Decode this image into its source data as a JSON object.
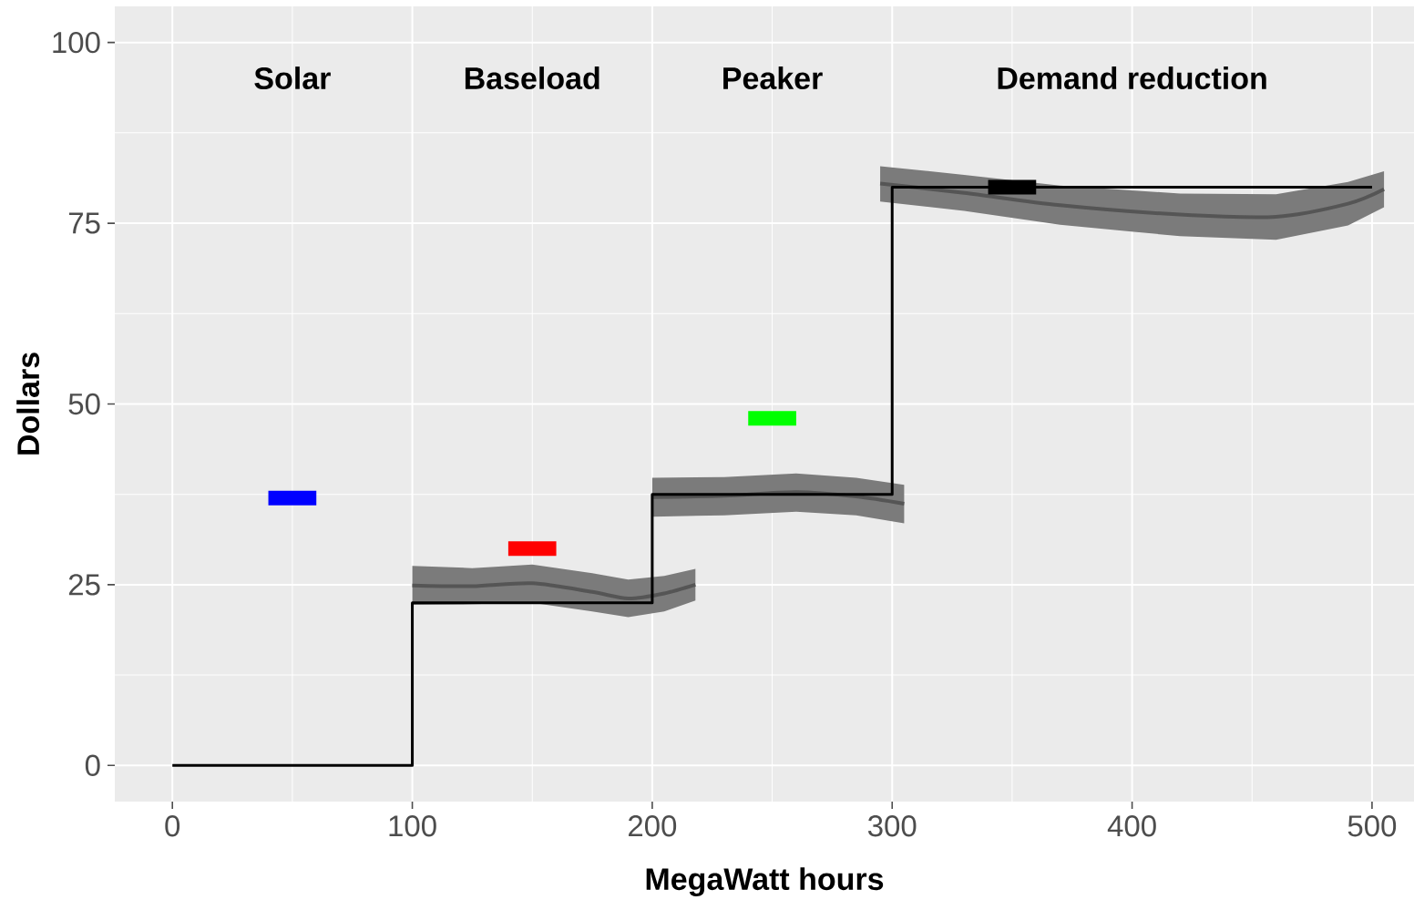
{
  "chart_data": {
    "type": "line",
    "xlabel": "MegaWatt hours",
    "ylabel": "Dollars",
    "xlim": [
      -24,
      517.5
    ],
    "ylim": [
      -5,
      105
    ],
    "xticks": [
      0,
      100,
      200,
      300,
      400,
      500
    ],
    "yticks": [
      0,
      25,
      50,
      75,
      100
    ],
    "grid": true,
    "series": [
      {
        "color": "#555555",
        "x": [
          100,
          125,
          150,
          175,
          190,
          205,
          218
        ],
        "values": [
          24.9,
          24.8,
          25.2,
          24.0,
          23.1,
          23.8,
          25.0
        ],
        "lower": [
          22.2,
          22.3,
          22.5,
          21.3,
          20.5,
          21.3,
          22.8
        ],
        "upper": [
          27.6,
          27.3,
          27.8,
          26.6,
          25.7,
          26.2,
          27.2
        ]
      },
      {
        "color": "#555555",
        "x": [
          200,
          230,
          260,
          285,
          305
        ],
        "values": [
          37.1,
          37.3,
          37.8,
          37.2,
          36.2
        ],
        "lower": [
          34.4,
          34.6,
          35.1,
          34.6,
          33.5
        ],
        "upper": [
          39.8,
          39.9,
          40.4,
          39.8,
          38.8
        ]
      },
      {
        "color": "#555555",
        "x": [
          295,
          330,
          370,
          420,
          460,
          490,
          505
        ],
        "values": [
          80.5,
          79.2,
          77.5,
          76.2,
          75.9,
          77.7,
          79.7
        ],
        "lower": [
          78.0,
          76.7,
          74.8,
          73.2,
          72.7,
          74.7,
          77.2
        ],
        "upper": [
          82.9,
          81.7,
          80.2,
          79.1,
          79.0,
          80.7,
          82.2
        ]
      },
      {
        "type": "step",
        "color": "#000000",
        "x": [
          0,
          100,
          200,
          300,
          500
        ],
        "values": [
          0,
          22.5,
          37.5,
          80,
          80
        ]
      },
      {
        "color": "#0000ff",
        "x": [
          40,
          60
        ],
        "values": [
          37,
          37
        ]
      },
      {
        "color": "#ff0000",
        "x": [
          140,
          160
        ],
        "values": [
          30,
          30
        ]
      },
      {
        "color": "#00ff00",
        "x": [
          240,
          260
        ],
        "values": [
          48,
          48
        ]
      },
      {
        "color": "#000000",
        "x": [
          340,
          360
        ],
        "values": [
          80,
          80
        ]
      }
    ],
    "annotations": [
      "Solar",
      "Baseload",
      "Peaker",
      "Demand reduction"
    ]
  }
}
